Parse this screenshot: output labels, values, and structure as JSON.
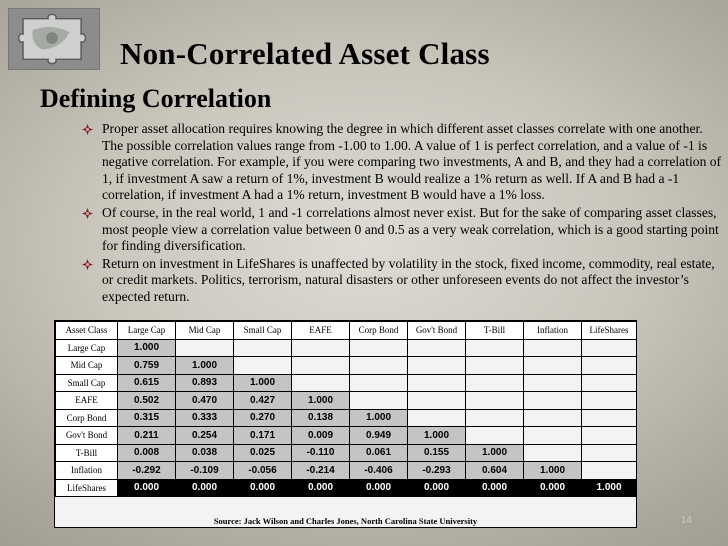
{
  "title": "Non-Correlated Asset Class",
  "subtitle": "Defining Correlation",
  "bullets": [
    "Proper asset allocation requires knowing the degree in which different asset classes correlate with one another. The possible correlation values range from -1.00 to 1.00. A value of 1 is perfect correlation, and a value of -1 is negative correlation. For example, if you were comparing two investments, A and B, and they had a correlation of 1, if investment A saw a return of 1%, investment B would realize a 1% return as well. If A and B had a -1 correlation, if investment A had a 1% return, investment B would have a 1% loss.",
    "Of course, in the real world, 1 and -1 correlations almost never exist. But for the sake of comparing asset classes, most people view a correlation value between 0 and 0.5 as a very weak correlation, which is a good starting point for finding diversification.",
    "Return on investment in LifeShares is unaffected by volatility in the stock, fixed income, commodity, real estate, or credit markets.  Politics, terrorism, natural disasters or other unforeseen events do not affect the investor’s expected return."
  ],
  "table": {
    "headers": [
      "Asset Class",
      "Large Cap",
      "Mid Cap",
      "Small Cap",
      "EAFE",
      "Corp Bond",
      "Gov't Bond",
      "T-Bill",
      "Inflation",
      "LifeShares"
    ],
    "rows": [
      {
        "label": "Large Cap",
        "values": [
          "1.000"
        ]
      },
      {
        "label": "Mid Cap",
        "values": [
          "0.759",
          "1.000"
        ]
      },
      {
        "label": "Small Cap",
        "values": [
          "0.615",
          "0.893",
          "1.000"
        ]
      },
      {
        "label": "EAFE",
        "values": [
          "0.502",
          "0.470",
          "0.427",
          "1.000"
        ]
      },
      {
        "label": "Corp Bond",
        "values": [
          "0.315",
          "0.333",
          "0.270",
          "0.138",
          "1.000"
        ]
      },
      {
        "label": "Gov't Bond",
        "values": [
          "0.211",
          "0.254",
          "0.171",
          "0.009",
          "0.949",
          "1.000"
        ]
      },
      {
        "label": "T-Bill",
        "values": [
          "0.008",
          "0.038",
          "0.025",
          "-0.110",
          "0.061",
          "0.155",
          "1.000"
        ]
      },
      {
        "label": "Inflation",
        "values": [
          "-0.292",
          "-0.109",
          "-0.056",
          "-0.214",
          "-0.406",
          "-0.293",
          "0.604",
          "1.000"
        ]
      },
      {
        "label": "LifeShares",
        "values": [
          "0.000",
          "0.000",
          "0.000",
          "0.000",
          "0.000",
          "0.000",
          "0.000",
          "0.000",
          "1.000"
        ]
      }
    ],
    "source": "Source:  Jack Wilson and Charles Jones, North Carolina State University"
  },
  "page_number": "14",
  "icons": {
    "bullet": "diamond-bullet-icon",
    "logo": "puzzle-piece-logo"
  },
  "colors": {
    "bullet": "#7a1f1f",
    "cell": "#c4c4c4",
    "lifeshares_cell": "#000000"
  }
}
